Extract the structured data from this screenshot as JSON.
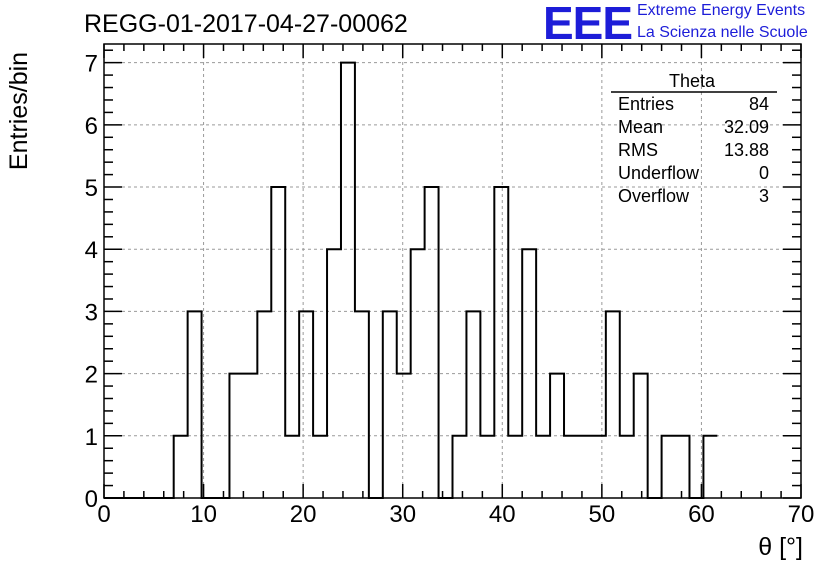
{
  "title": "REGG-01-2017-04-27-00062",
  "logo": {
    "mark": "EEE",
    "line1": "Extreme Energy Events",
    "line2": "La Scienza nelle Scuole",
    "color": "#1d1dd8"
  },
  "stats": {
    "name": "Theta",
    "rows": [
      {
        "label": "Entries",
        "value": "84"
      },
      {
        "label": "Mean",
        "value": "32.09"
      },
      {
        "label": "RMS",
        "value": "13.88"
      },
      {
        "label": "Underflow",
        "value": "0"
      },
      {
        "label": "Overflow",
        "value": "3"
      }
    ]
  },
  "chart_data": {
    "type": "histogram",
    "xlabel": "θ [°]",
    "ylabel": "Entries/bin",
    "xlim": [
      0,
      70
    ],
    "ylim": [
      0,
      7.3
    ],
    "x_ticks": [
      0,
      10,
      20,
      30,
      40,
      50,
      60,
      70
    ],
    "y_ticks": [
      0,
      1,
      2,
      3,
      4,
      5,
      6,
      7
    ],
    "grid": true,
    "bin_width": 1.4,
    "bin_edges_start": 0,
    "counts": [
      0,
      0,
      0,
      0,
      0,
      1,
      3,
      0,
      0,
      2,
      2,
      3,
      5,
      1,
      3,
      1,
      4,
      7,
      3,
      0,
      3,
      2,
      4,
      5,
      0,
      1,
      3,
      1,
      5,
      1,
      4,
      1,
      2,
      1,
      1,
      1,
      3,
      1,
      2,
      0,
      1,
      1,
      0,
      1
    ]
  }
}
